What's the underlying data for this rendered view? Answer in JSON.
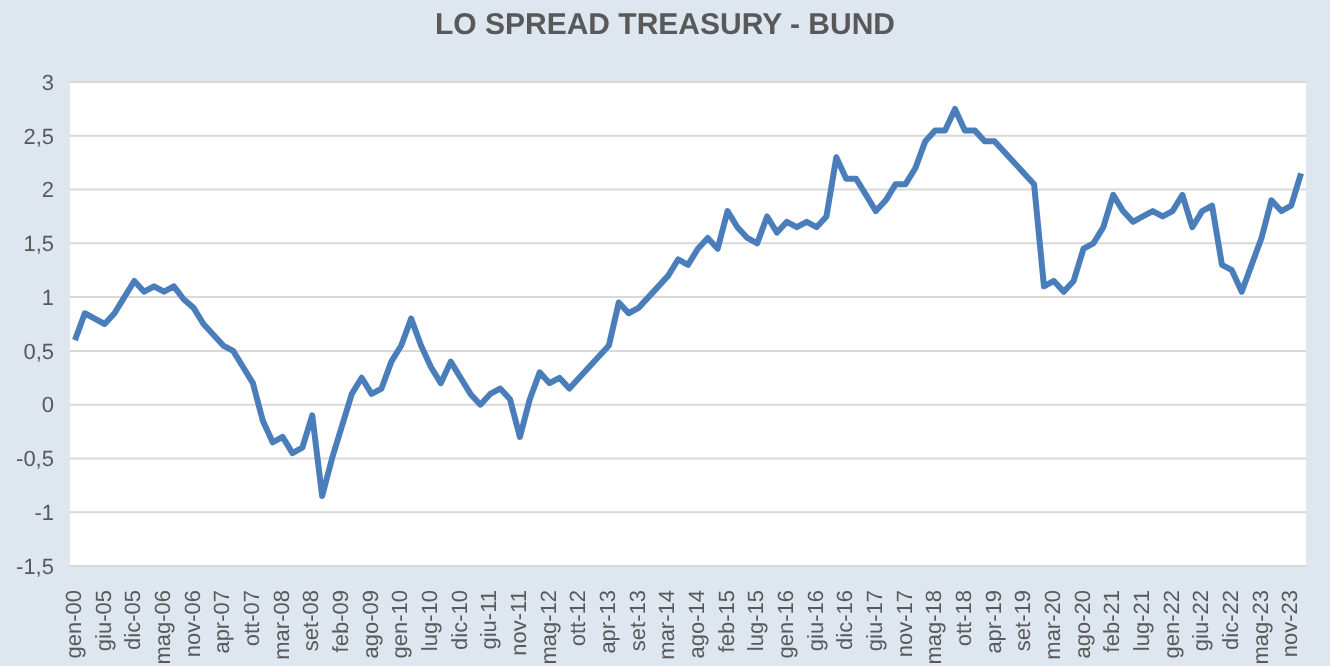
{
  "chart_data": {
    "type": "line",
    "title": "LO SPREAD TREASURY - BUND",
    "categories": [
      "gen-00",
      null,
      null,
      "giu-05",
      null,
      null,
      "dic-05",
      null,
      null,
      "mag-06",
      null,
      null,
      "nov-06",
      null,
      null,
      "apr-07",
      null,
      null,
      "ott-07",
      null,
      null,
      "mar-08",
      null,
      null,
      "set-08",
      null,
      null,
      "feb-09",
      null,
      null,
      "ago-09",
      null,
      null,
      "gen-10",
      null,
      null,
      "lug-10",
      null,
      null,
      "dic-10",
      null,
      null,
      "giu-11",
      null,
      null,
      "nov-11",
      null,
      null,
      "mag-12",
      null,
      null,
      "ott-12",
      null,
      null,
      "apr-13",
      null,
      null,
      "set-13",
      null,
      null,
      "mar-14",
      null,
      null,
      "ago-14",
      null,
      null,
      "feb-15",
      null,
      null,
      "lug-15",
      null,
      null,
      "gen-16",
      null,
      null,
      "giu-16",
      null,
      null,
      "dic-16",
      null,
      null,
      "giu-17",
      null,
      null,
      "nov-17",
      null,
      null,
      "mag-18",
      null,
      null,
      "ott-18",
      null,
      null,
      "apr-19",
      null,
      null,
      "set-19",
      null,
      null,
      "mar-20",
      null,
      null,
      "ago-20",
      null,
      null,
      "feb-21",
      null,
      null,
      "lug-21",
      null,
      null,
      "gen-22",
      null,
      null,
      "giu-22",
      null,
      null,
      "dic-22",
      null,
      null,
      "mag-23",
      null,
      null,
      "nov-23",
      null
    ],
    "series": [
      {
        "color": "#4a7ebb",
        "values": [
          0.6,
          0.85,
          0.8,
          0.75,
          0.85,
          1.0,
          1.15,
          1.05,
          1.1,
          1.05,
          1.1,
          0.98,
          0.9,
          0.75,
          0.65,
          0.55,
          0.5,
          0.35,
          0.2,
          -0.15,
          -0.35,
          -0.3,
          -0.45,
          -0.4,
          -0.1,
          -0.85,
          -0.5,
          -0.2,
          0.1,
          0.25,
          0.1,
          0.15,
          0.4,
          0.55,
          0.8,
          0.55,
          0.35,
          0.2,
          0.4,
          0.25,
          0.1,
          0.0,
          0.1,
          0.15,
          0.05,
          -0.3,
          0.05,
          0.3,
          0.2,
          0.25,
          0.15,
          0.25,
          0.35,
          0.45,
          0.55,
          0.95,
          0.85,
          0.9,
          1.0,
          1.1,
          1.2,
          1.35,
          1.3,
          1.45,
          1.55,
          1.45,
          1.8,
          1.65,
          1.55,
          1.5,
          1.75,
          1.6,
          1.7,
          1.65,
          1.7,
          1.65,
          1.75,
          2.3,
          2.1,
          2.1,
          1.95,
          1.8,
          1.9,
          2.05,
          2.05,
          2.2,
          2.45,
          2.55,
          2.55,
          2.75,
          2.55,
          2.55,
          2.45,
          2.45,
          2.35,
          2.25,
          2.15,
          2.05,
          1.1,
          1.15,
          1.05,
          1.15,
          1.45,
          1.5,
          1.65,
          1.95,
          1.8,
          1.7,
          1.75,
          1.8,
          1.75,
          1.8,
          1.95,
          1.65,
          1.8,
          1.85,
          1.3,
          1.25,
          1.05,
          1.3,
          1.55,
          1.9,
          1.8,
          1.85,
          2.15
        ]
      }
    ],
    "ylim": [
      -1.5,
      3
    ],
    "yticks": [
      {
        "value": -1.5,
        "label": "-1,5"
      },
      -1,
      {
        "value": -0.5,
        "label": "-0,5"
      },
      0,
      {
        "value": 0.5,
        "label": "0,5"
      },
      1,
      {
        "value": 1.5,
        "label": "1,5"
      },
      2,
      {
        "value": 2.5,
        "label": "2,5"
      },
      3
    ],
    "grid": "y",
    "marker": "none",
    "line_style": "solid"
  }
}
